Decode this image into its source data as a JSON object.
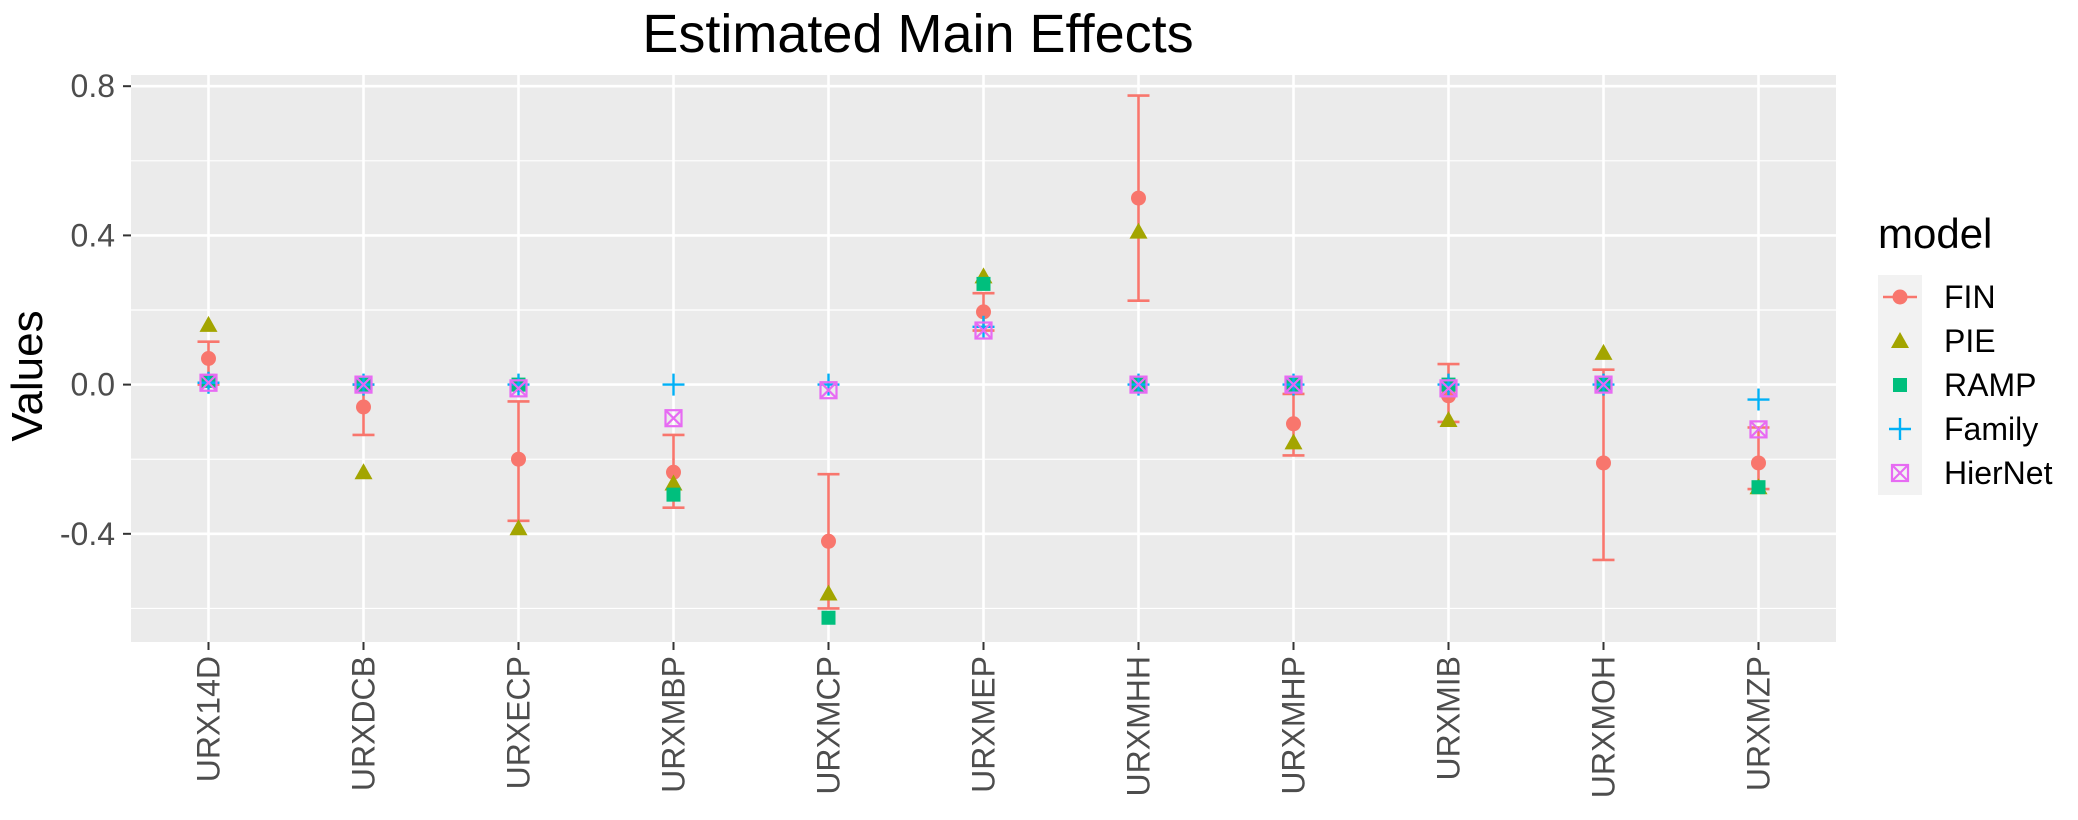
{
  "chart_data": {
    "type": "scatter",
    "title": "Estimated Main Effects",
    "xlabel": "",
    "ylabel": "Values",
    "ylim": [
      -0.69,
      0.83
    ],
    "yticks": [
      -0.4,
      0.0,
      0.4,
      0.8
    ],
    "ytick_labels": [
      "-0.4",
      "0.0",
      "0.4",
      "0.8"
    ],
    "grid": true,
    "legend": {
      "title": "model",
      "placement": "right"
    },
    "categories": [
      "URX14D",
      "URXDCB",
      "URXECP",
      "URXMBP",
      "URXMCP",
      "URXMEP",
      "URXMHH",
      "URXMHP",
      "URXMIB",
      "URXMOH",
      "URXMZP"
    ],
    "series": [
      {
        "name": "FIN",
        "shape": "circle",
        "color": "#F8766D",
        "values": [
          0.07,
          -0.06,
          -0.2,
          -0.235,
          -0.42,
          0.195,
          0.5,
          -0.105,
          -0.03,
          -0.21,
          -0.21
        ],
        "error_low": [
          0.0,
          -0.135,
          -0.365,
          -0.33,
          -0.6,
          0.145,
          0.225,
          -0.19,
          -0.1,
          -0.47,
          -0.28
        ],
        "error_high": [
          0.115,
          0.0,
          -0.045,
          -0.135,
          -0.24,
          0.245,
          0.775,
          -0.025,
          0.055,
          0.04,
          -0.115
        ]
      },
      {
        "name": "PIE",
        "shape": "triangle",
        "color": "#A3A500",
        "values": [
          0.16,
          -0.235,
          -0.385,
          -0.265,
          -0.56,
          0.29,
          0.41,
          -0.155,
          -0.095,
          0.085,
          -0.275
        ]
      },
      {
        "name": "RAMP",
        "shape": "square",
        "color": "#00BF7D",
        "values": [
          0.01,
          0.0,
          0.0,
          -0.295,
          -0.625,
          0.27,
          0.0,
          0.0,
          0.0,
          0.0,
          -0.275
        ]
      },
      {
        "name": "Family",
        "shape": "plus",
        "color": "#00B0F6",
        "values": [
          0.005,
          0.0,
          0.0,
          0.0,
          0.0,
          0.155,
          0.0,
          0.0,
          0.0,
          0.0,
          -0.04
        ]
      },
      {
        "name": "HierNet",
        "shape": "boxed-x",
        "color": "#E76BF3",
        "values": [
          0.005,
          0.0,
          -0.01,
          -0.09,
          -0.015,
          0.145,
          0.0,
          0.0,
          -0.01,
          0.0,
          -0.12
        ]
      }
    ]
  }
}
